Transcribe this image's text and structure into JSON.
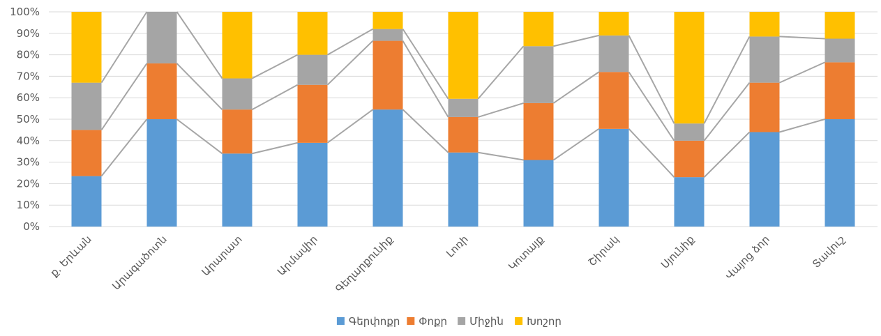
{
  "chart_data": {
    "type": "bar",
    "stacked": "percent",
    "categories": [
      "ք. Երևան",
      "Արագածոտն",
      "Արարատ",
      "Արմավիր",
      "Գեղարքունիք",
      "Լոռի",
      "Կոտայք",
      "Շիրակ",
      "Սյունիք",
      "Վայոց ձոր",
      "Տավուշ"
    ],
    "series": [
      {
        "name": "Գերփոքր",
        "color": "#5b9bd5",
        "values": [
          23.5,
          50,
          34,
          39,
          54.5,
          34.5,
          31,
          45.5,
          23,
          44,
          50
        ]
      },
      {
        "name": "Փոքր",
        "color": "#ed7d31",
        "values": [
          21.5,
          26,
          20.5,
          27,
          32,
          16.5,
          26.5,
          26.5,
          17,
          23,
          26.5
        ]
      },
      {
        "name": "Միջին",
        "color": "#a5a5a5",
        "values": [
          22,
          24,
          14.5,
          14,
          5.5,
          8.5,
          26.5,
          17,
          8,
          21.5,
          11
        ]
      },
      {
        "name": "Խոշոր",
        "color": "#ffc000",
        "values": [
          33,
          0,
          31,
          20,
          8,
          40.5,
          16,
          11,
          52,
          11.5,
          12.5
        ]
      }
    ],
    "yticks": [
      "0%",
      "10%",
      "20%",
      "30%",
      "40%",
      "50%",
      "60%",
      "70%",
      "80%",
      "90%",
      "100%"
    ],
    "ylim": [
      0,
      100
    ],
    "grid": true,
    "series_lines": true,
    "legend_position": "bottom"
  }
}
